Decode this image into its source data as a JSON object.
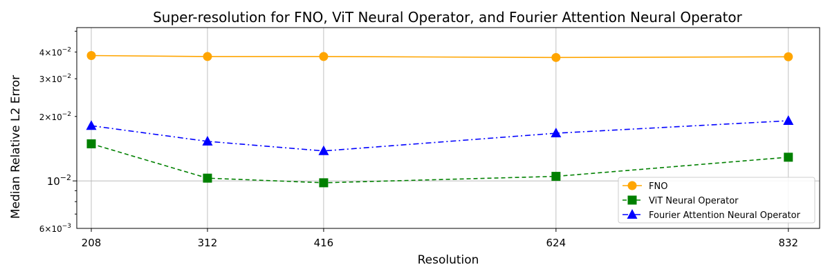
{
  "chart_data": {
    "type": "line",
    "title": "Super-resolution for FNO, ViT Neural Operator, and Fourier Attention Neural Operator",
    "xlabel": "Resolution",
    "ylabel": "Median Relative L2 Error",
    "x": [
      208,
      312,
      416,
      624,
      832
    ],
    "xlim": [
      195,
      860
    ],
    "ylim": [
      0.006,
      0.052
    ],
    "yscale": "log",
    "grid": true,
    "legend_loc": "lower right",
    "y_ticks": [
      {
        "value": 0.04,
        "label": "4 × 10^-2"
      },
      {
        "value": 0.03,
        "label": "3 × 10^-2"
      },
      {
        "value": 0.02,
        "label": "2 × 10^-2"
      },
      {
        "value": 0.01,
        "label": "10^-2"
      },
      {
        "value": 0.006,
        "label": "6 × 10^-3"
      }
    ],
    "series": [
      {
        "name": "FNO",
        "color": "#ffa500",
        "dash": "",
        "marker": "circle",
        "values": [
          0.0385,
          0.0381,
          0.0381,
          0.0377,
          0.038
        ]
      },
      {
        "name": "ViT Neural Operator",
        "color": "#008000",
        "dash": "6 4",
        "marker": "square",
        "values": [
          0.0149,
          0.0103,
          0.0098,
          0.0105,
          0.0129
        ]
      },
      {
        "name": "Fourier Attention Neural Operator",
        "color": "#0000ff",
        "dash": "8 4 2 4",
        "marker": "triangle",
        "values": [
          0.0181,
          0.0153,
          0.0138,
          0.0167,
          0.0191
        ]
      }
    ]
  }
}
